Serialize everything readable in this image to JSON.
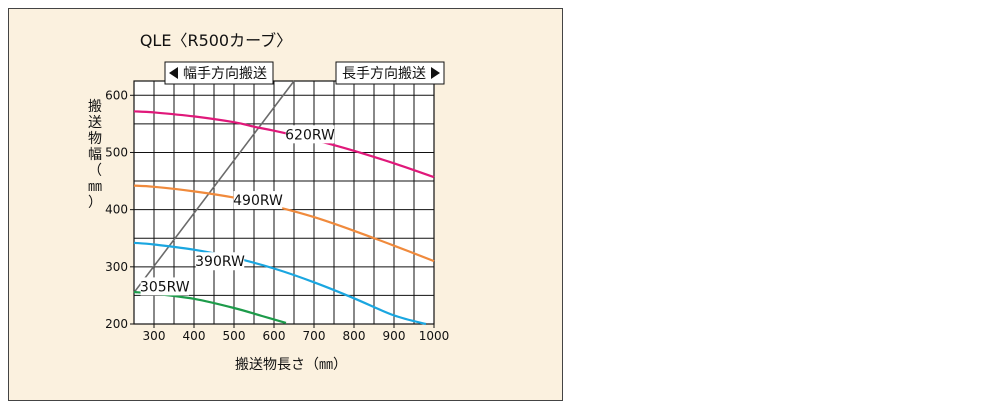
{
  "chart_data": {
    "type": "line",
    "title": "QLE〈R500カーブ〉",
    "xlabel": "搬送物長さ（㎜）",
    "ylabel": "搬送物幅（㎜）",
    "xlim": [
      250,
      1000
    ],
    "ylim": [
      200,
      625
    ],
    "xticks": [
      300,
      400,
      500,
      600,
      700,
      800,
      900,
      1000
    ],
    "yticks": [
      200,
      300,
      400,
      500,
      600
    ],
    "grid": true,
    "direction_labels": {
      "left": "幅手方向搬送",
      "right": "長手方向搬送"
    },
    "divider_line": {
      "x": [
        250,
        650
      ],
      "y": [
        255,
        625
      ]
    },
    "series": [
      {
        "name": "620RW",
        "color": "#e0187a",
        "x": [
          250,
          300,
          400,
          500,
          550,
          600,
          700,
          800,
          900,
          1000
        ],
        "y": [
          572,
          570,
          563,
          553,
          545,
          538,
          522,
          503,
          481,
          457
        ],
        "label_pos": {
          "x": 690,
          "y": 530
        }
      },
      {
        "name": "490RW",
        "color": "#f08a3c",
        "x": [
          250,
          300,
          400,
          500,
          600,
          700,
          800,
          900,
          1000
        ],
        "y": [
          442,
          440,
          432,
          421,
          406,
          387,
          363,
          337,
          310
        ],
        "label_pos": {
          "x": 560,
          "y": 415
        }
      },
      {
        "name": "390RW",
        "color": "#1aa6e0",
        "x": [
          250,
          300,
          400,
          500,
          600,
          700,
          800,
          900,
          980
        ],
        "y": [
          342,
          339,
          330,
          316,
          297,
          273,
          245,
          215,
          200
        ],
        "label_pos": {
          "x": 465,
          "y": 308
        }
      },
      {
        "name": "305RW",
        "color": "#1d9b4a",
        "x": [
          250,
          300,
          400,
          500,
          570,
          630
        ],
        "y": [
          256,
          253,
          244,
          228,
          214,
          202
        ],
        "label_pos": {
          "x": 327,
          "y": 264
        }
      }
    ]
  }
}
